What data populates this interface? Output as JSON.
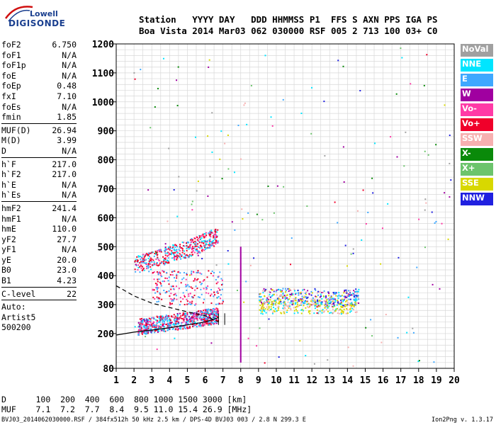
{
  "logo": {
    "line1": "Lowell",
    "line2": "DIGISONDE"
  },
  "header": {
    "row1": [
      "Station",
      "YYYY",
      "DAY",
      "DDD",
      "HHMMSS",
      "P1",
      "FFS",
      "S",
      "AXN",
      "PPS",
      "IGA",
      "PS"
    ],
    "row2": [
      "Boa Vista",
      "2014",
      "Mar03",
      "062",
      "030000",
      "RSF",
      "005",
      "2",
      "713",
      "100",
      "03+",
      "C0"
    ]
  },
  "params": {
    "group1": [
      {
        "k": "foF2",
        "v": "6.750"
      },
      {
        "k": "foF1",
        "v": "N/A"
      },
      {
        "k": "foF1p",
        "v": "N/A"
      },
      {
        "k": "foE",
        "v": "N/A"
      },
      {
        "k": "foEp",
        "v": "0.48"
      },
      {
        "k": "fxI",
        "v": "7.10"
      },
      {
        "k": "foEs",
        "v": "N/A"
      },
      {
        "k": "fmin",
        "v": "1.85"
      }
    ],
    "group2": [
      {
        "k": "MUF(D)",
        "v": "26.94"
      },
      {
        "k": "M(D)",
        "v": "3.99"
      },
      {
        "k": "D",
        "v": "N/A"
      }
    ],
    "group3": [
      {
        "k": "h`F",
        "v": "217.0"
      },
      {
        "k": "h`F2",
        "v": "217.0"
      },
      {
        "k": "h`E",
        "v": "N/A"
      },
      {
        "k": "h`Es",
        "v": "N/A"
      }
    ],
    "group4": [
      {
        "k": "hmF2",
        "v": "241.4"
      },
      {
        "k": "hmF1",
        "v": "N/A"
      },
      {
        "k": "hmE",
        "v": "110.0"
      },
      {
        "k": "yF2",
        "v": "27.7"
      },
      {
        "k": "yF1",
        "v": "N/A"
      },
      {
        "k": "yE",
        "v": "20.0"
      },
      {
        "k": "B0",
        "v": "23.0"
      },
      {
        "k": "B1",
        "v": "4.23"
      }
    ],
    "group5": [
      {
        "k": "C-level",
        "v": "22"
      }
    ],
    "auto": [
      "Auto:",
      "Artist5",
      "500200"
    ]
  },
  "legend": [
    {
      "name": "NoVal",
      "color": "#a0a0a0"
    },
    {
      "name": "NNE",
      "color": "#00e5ff"
    },
    {
      "name": "E",
      "color": "#3ea8ff"
    },
    {
      "name": "W",
      "color": "#a000a0"
    },
    {
      "name": "Vo-",
      "color": "#ff3aa6"
    },
    {
      "name": "Vo+",
      "color": "#f0002a"
    },
    {
      "name": "SSW",
      "color": "#f7b0b0"
    },
    {
      "name": "X-",
      "color": "#0a8a0a"
    },
    {
      "name": "X+",
      "color": "#6cc46c"
    },
    {
      "name": "SSE",
      "color": "#d8d800"
    },
    {
      "name": "NNW",
      "color": "#2020e0"
    }
  ],
  "footer": {
    "d_label": "D",
    "d_values": [
      "100",
      "200",
      "400",
      "600",
      "800",
      "1000",
      "1500",
      "3000"
    ],
    "d_unit": "[km]",
    "muf_label": "MUF",
    "muf_values": [
      "7.1",
      "7.2",
      "7.7",
      "8.4",
      "9.5",
      "11.0",
      "15.4",
      "26.9"
    ],
    "muf_unit": "[MHz]",
    "file_line": "BVJ03_2014062030000.RSF / 384fx512h 50 kHz 2.5 km / DPS-4D BVJ03 003 / 2.8 N 299.3 E",
    "version": "Ion2Png v. 1.3.17"
  },
  "chart_data": {
    "type": "scatter",
    "title": "",
    "xlabel": "",
    "ylabel": "",
    "xlim": [
      1,
      20
    ],
    "ylim": [
      80,
      1200
    ],
    "x_ticks": [
      1,
      2,
      3,
      4,
      5,
      6,
      7,
      8,
      9,
      10,
      11,
      12,
      13,
      14,
      15,
      16,
      17,
      18,
      19,
      20
    ],
    "y_ticks": [
      80,
      200,
      300,
      400,
      500,
      600,
      700,
      800,
      900,
      1000,
      1100,
      1200
    ],
    "grid": true,
    "legend_position": "right",
    "traces": [
      {
        "name": "F trace (lower)",
        "x": [
          2.2,
          3,
          4,
          5,
          6,
          6.7
        ],
        "y": [
          225,
          232,
          240,
          248,
          258,
          265
        ]
      },
      {
        "name": "F trace (upper)",
        "x": [
          1.7,
          2,
          2.5,
          3,
          3.5,
          4,
          4.5
        ],
        "y": [
          300,
          290,
          280,
          272,
          265,
          260,
          255
        ]
      },
      {
        "name": "F2 second hop",
        "x": [
          2,
          3,
          4,
          5,
          6,
          6.7
        ],
        "y": [
          440,
          455,
          475,
          495,
          520,
          540
        ]
      },
      {
        "name": "oblique echoes",
        "x": [
          9,
          10,
          11,
          12,
          13,
          14,
          14.6
        ],
        "y": [
          330,
          330,
          330,
          325,
          320,
          325,
          330
        ]
      }
    ],
    "curves": [
      {
        "name": "profile (dashed)",
        "style": "dashed",
        "x": [
          1,
          2,
          3,
          4,
          5,
          6,
          6.75
        ],
        "y": [
          365,
          330,
          305,
          290,
          275,
          262,
          240
        ]
      },
      {
        "name": "profile (solid)",
        "style": "solid",
        "x": [
          1,
          2,
          3,
          4,
          5,
          6,
          6.75
        ],
        "y": [
          195,
          205,
          212,
          220,
          230,
          240,
          255
        ]
      }
    ],
    "markers": [
      {
        "name": "foF2",
        "x": 6.75
      },
      {
        "name": "fxI",
        "x": 7.1
      },
      {
        "name": "vertical echo column",
        "x": 8.0,
        "y_from": 100,
        "y_to": 500
      }
    ]
  }
}
